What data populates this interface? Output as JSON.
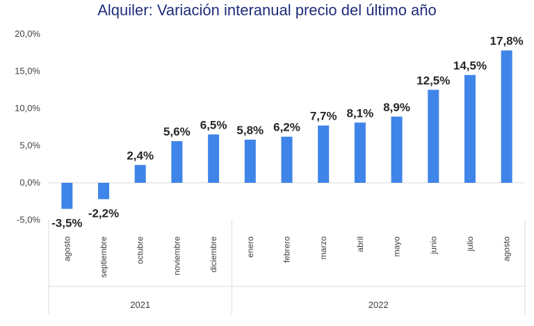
{
  "chart_data": {
    "type": "bar",
    "title": "Alquiler: Variación interanual precio del último año",
    "categories": [
      "agosto",
      "septiembre",
      "octubre",
      "noviembre",
      "diciembre",
      "enero",
      "febrero",
      "marzo",
      "abril",
      "mayo",
      "junio",
      "julio",
      "agosto"
    ],
    "values": [
      -3.5,
      -2.2,
      2.4,
      5.6,
      6.5,
      5.8,
      6.2,
      7.7,
      8.1,
      8.9,
      12.5,
      14.5,
      17.8
    ],
    "data_labels": [
      "-3,5%",
      "-2,2%",
      "2,4%",
      "5,6%",
      "6,5%",
      "5,8%",
      "6,2%",
      "7,7%",
      "8,1%",
      "8,9%",
      "12,5%",
      "14,5%",
      "17,8%"
    ],
    "groups": [
      {
        "label": "2021",
        "start": 0,
        "end": 4
      },
      {
        "label": "2022",
        "start": 5,
        "end": 12
      }
    ],
    "yticks": [
      -5,
      0,
      5,
      10,
      15,
      20
    ],
    "ytick_labels": [
      "-5,0%",
      "0,0%",
      "5,0%",
      "10,0%",
      "15,0%",
      "20,0%"
    ],
    "ylim": [
      -5,
      20
    ],
    "bar_color": "#3f84e8",
    "grid": false,
    "xlabel": "",
    "ylabel": ""
  }
}
